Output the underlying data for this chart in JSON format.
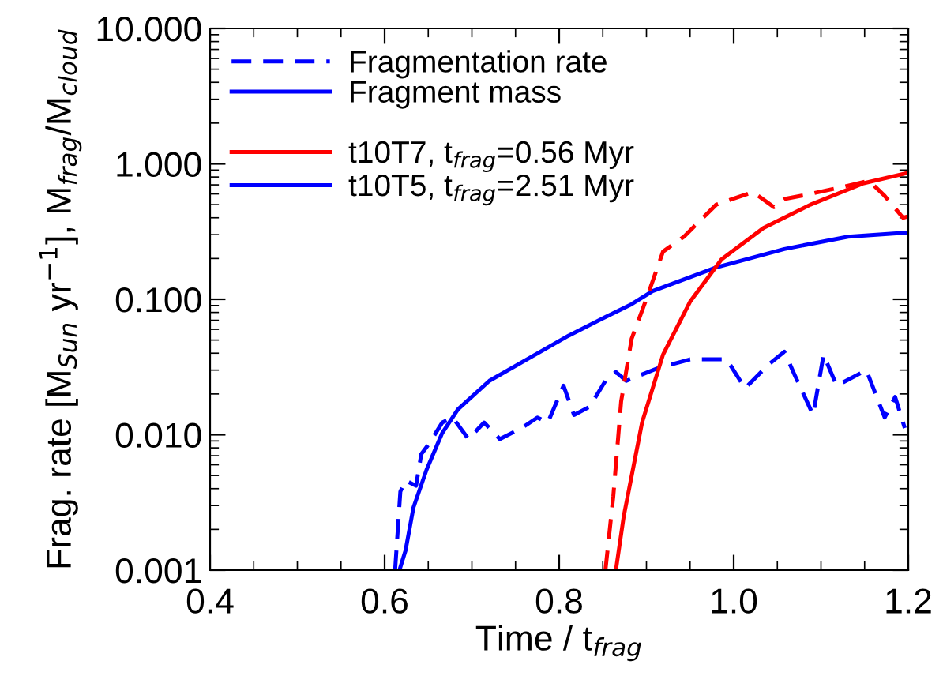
{
  "chart_data": {
    "type": "line",
    "xlabel": "Time / t$_{frag}$",
    "ylabel": "Frag. rate [M$_{Sun}$ yr$^{−1}$], M$_{frag}$/M$_{cloud}$",
    "log": "y",
    "xlim": [
      0.4,
      1.2
    ],
    "ylim": [
      0.001,
      10
    ],
    "xticks": [
      {
        "value": 0.4,
        "label": "0.4"
      },
      {
        "value": 0.6,
        "label": "0.6"
      },
      {
        "value": 0.8,
        "label": "0.8"
      },
      {
        "value": 1.0,
        "label": "1.0"
      },
      {
        "value": 1.2,
        "label": "1.2"
      }
    ],
    "yticks": [
      {
        "value": 0.001,
        "label": "0.001"
      },
      {
        "value": 0.01,
        "label": "0.010"
      },
      {
        "value": 0.1,
        "label": "0.100"
      },
      {
        "value": 1,
        "label": "1.000"
      },
      {
        "value": 10,
        "label": "10.000"
      }
    ],
    "grid": false,
    "legend": "top left",
    "series": [
      {
        "name": "Fragmentation rate",
        "color": "#0000ff",
        "line_style": "dashed",
        "x": [
          0.612,
          0.618,
          0.624,
          0.636,
          0.642,
          0.651,
          0.666,
          0.678,
          0.696,
          0.714,
          0.732,
          0.757,
          0.775,
          0.787,
          0.805,
          0.817,
          0.835,
          0.853,
          0.865,
          0.877,
          0.913,
          0.95,
          0.992,
          1.013,
          1.04,
          1.058,
          1.07,
          1.091,
          1.103,
          1.118,
          1.152,
          1.173,
          1.185,
          1.196
        ],
        "values": [
          0.001,
          0.0038,
          0.0046,
          0.0042,
          0.0072,
          0.0086,
          0.0123,
          0.0134,
          0.0093,
          0.0123,
          0.0093,
          0.0112,
          0.0134,
          0.0123,
          0.023,
          0.014,
          0.0161,
          0.025,
          0.029,
          0.025,
          0.031,
          0.036,
          0.036,
          0.022,
          0.033,
          0.041,
          0.0275,
          0.014,
          0.039,
          0.023,
          0.03,
          0.0134,
          0.019,
          0.0112
        ]
      },
      {
        "name": "Fragment mass",
        "color": "#0000ff",
        "line_style": "solid",
        "x": [
          0.617,
          0.624,
          0.633,
          0.648,
          0.666,
          0.684,
          0.72,
          0.763,
          0.811,
          0.853,
          0.883,
          0.907,
          0.98,
          1.058,
          1.131,
          1.197
        ],
        "values": [
          0.001,
          0.0014,
          0.0029,
          0.0055,
          0.0103,
          0.0154,
          0.025,
          0.036,
          0.054,
          0.074,
          0.092,
          0.115,
          0.172,
          0.235,
          0.29,
          0.31
        ]
      },
      {
        "name": "t10T7, t$_{frag}$=0.56 Myr",
        "color": "#ff0000",
        "line_style": "solid",
        "x": [
          0.865,
          0.874,
          0.895,
          0.919,
          0.95,
          0.986,
          1.034,
          1.088,
          1.149,
          1.2
        ],
        "values": [
          0.001,
          0.0025,
          0.0123,
          0.039,
          0.096,
          0.197,
          0.336,
          0.5,
          0.72,
          0.86
        ]
      },
      {
        "color": "#ff0000",
        "line_style": "dashed",
        "x": [
          0.853,
          0.862,
          0.871,
          0.883,
          0.901,
          0.919,
          0.943,
          0.98,
          1.022,
          1.046,
          1.058,
          1.088,
          1.131,
          1.155,
          1.173,
          1.194,
          1.2
        ],
        "values": [
          0.001,
          0.0035,
          0.0176,
          0.051,
          0.105,
          0.225,
          0.29,
          0.5,
          0.62,
          0.48,
          0.55,
          0.6,
          0.69,
          0.75,
          0.58,
          0.4,
          0.41
        ]
      }
    ],
    "annotations": [
      "t10T5, t$_{frag}$=2.51 Myr"
    ]
  }
}
